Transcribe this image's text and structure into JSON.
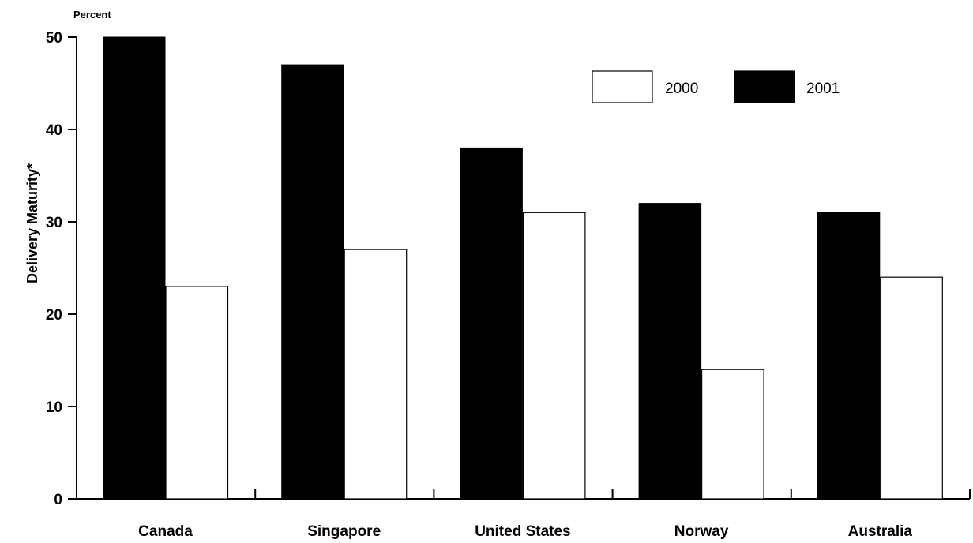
{
  "chart_data": {
    "type": "bar",
    "title": "",
    "unit_label": "Percent",
    "ylabel": "Delivery Maturity*",
    "xlabel": "",
    "categories": [
      "Canada",
      "Singapore",
      "United States",
      "Norway",
      "Australia"
    ],
    "series": [
      {
        "name": "2001",
        "values": [
          50,
          47,
          38,
          32,
          31
        ],
        "color": "#000000"
      },
      {
        "name": "2000",
        "values": [
          23,
          27,
          31,
          14,
          24
        ],
        "color": "#ffffff"
      }
    ],
    "ylim": [
      0,
      50
    ],
    "yticks": [
      0,
      10,
      20,
      30,
      40,
      50
    ],
    "grid": false,
    "legend": {
      "placement": "top-right",
      "order": [
        "2000",
        "2001"
      ]
    }
  }
}
